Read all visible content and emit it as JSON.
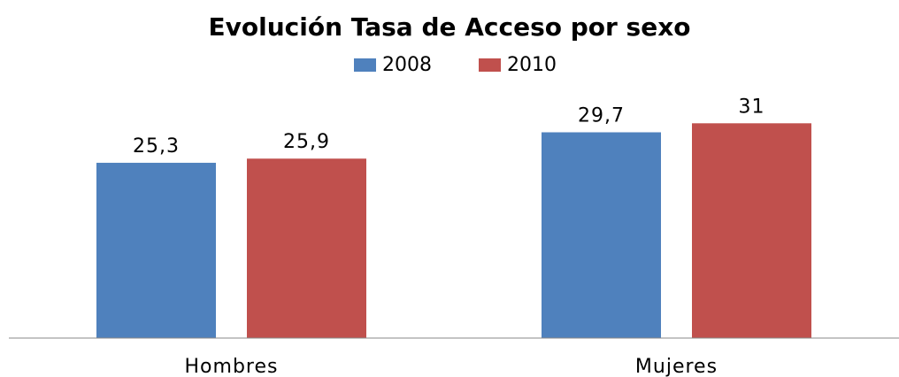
{
  "chart_data": {
    "type": "bar",
    "title": "Evolución Tasa de Acceso por sexo",
    "categories": [
      "Hombres",
      "Mujeres"
    ],
    "series": [
      {
        "name": "2008",
        "color": "#4f81bd",
        "values": [
          25.3,
          29.7
        ],
        "value_labels": [
          "25,3",
          "29,7"
        ]
      },
      {
        "name": "2010",
        "color": "#c0504d",
        "values": [
          25.9,
          31
        ],
        "value_labels": [
          "25,9",
          "31"
        ]
      }
    ],
    "ylim": [
      0,
      35
    ],
    "legend": "top"
  }
}
